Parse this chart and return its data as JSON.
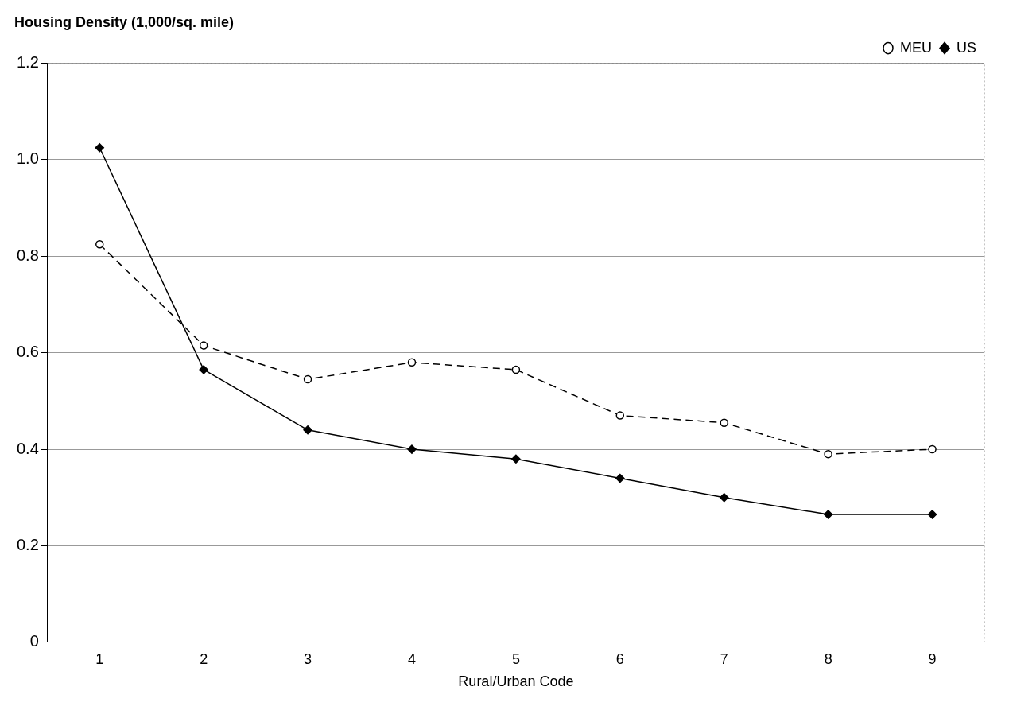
{
  "chart_data": {
    "type": "line",
    "title": "Housing Density (1,000/sq. mile)",
    "xlabel": "Rural/Urban Code",
    "categories": [
      "1",
      "2",
      "3",
      "4",
      "5",
      "6",
      "7",
      "8",
      "9"
    ],
    "series": [
      {
        "name": "MEU",
        "color": "#000000",
        "marker": "circle",
        "line_style": "dashed",
        "values": [
          0.825,
          0.615,
          0.545,
          0.58,
          0.565,
          0.47,
          0.455,
          0.39,
          0.4
        ]
      },
      {
        "name": "US",
        "color": "#000000",
        "marker": "diamond",
        "line_style": "solid",
        "values": [
          1.025,
          0.565,
          0.44,
          0.4,
          0.38,
          0.34,
          0.3,
          0.265,
          0.265
        ]
      }
    ],
    "ylim": [
      0,
      1.2
    ],
    "yticks": [
      0,
      {
        "value": 0.2,
        "label": "0.2"
      },
      {
        "value": 0.4,
        "label": "0.4"
      },
      {
        "value": 0.6,
        "label": "0.6"
      },
      {
        "value": 0.8,
        "label": "0.8"
      },
      {
        "value": 1,
        "label": "1.0"
      },
      {
        "value": 1.2,
        "label": "1.2"
      }
    ],
    "grid": "y",
    "legend": "top right"
  }
}
